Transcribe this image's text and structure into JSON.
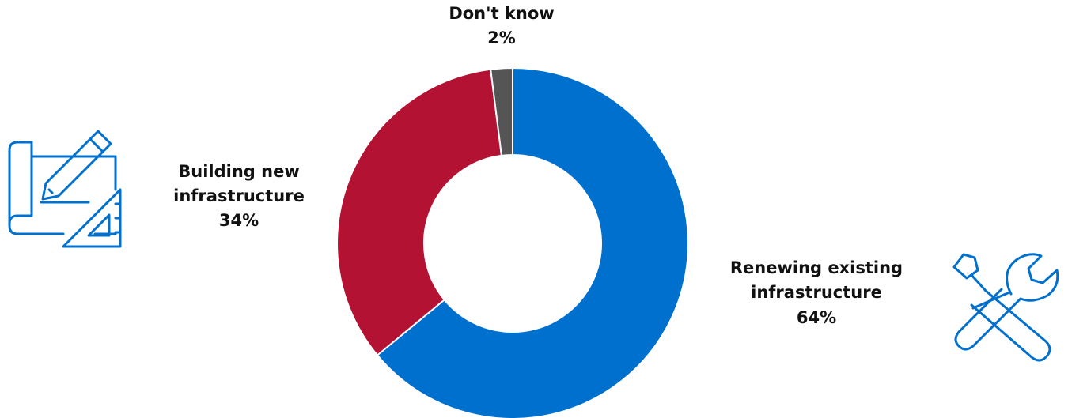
{
  "chart_data": {
    "type": "pie",
    "donut": true,
    "start_angle_deg": 0,
    "direction": "clockwise",
    "slices": [
      {
        "name": "Renewing existing",
        "name2": "infrastructure",
        "value": 64,
        "value_label": "64%",
        "color": "#0070CE"
      },
      {
        "name": "Building new",
        "name2": "infrastructure",
        "value": 34,
        "value_label": "34%",
        "color": "#B41233"
      },
      {
        "name": "Don't know",
        "name2": "",
        "value": 2,
        "value_label": "2%",
        "color": "#555555"
      }
    ]
  },
  "icons": {
    "left": "blueprint-pencil-ruler-icon",
    "right": "screwdriver-wrench-icon",
    "color": "#0070CE"
  }
}
